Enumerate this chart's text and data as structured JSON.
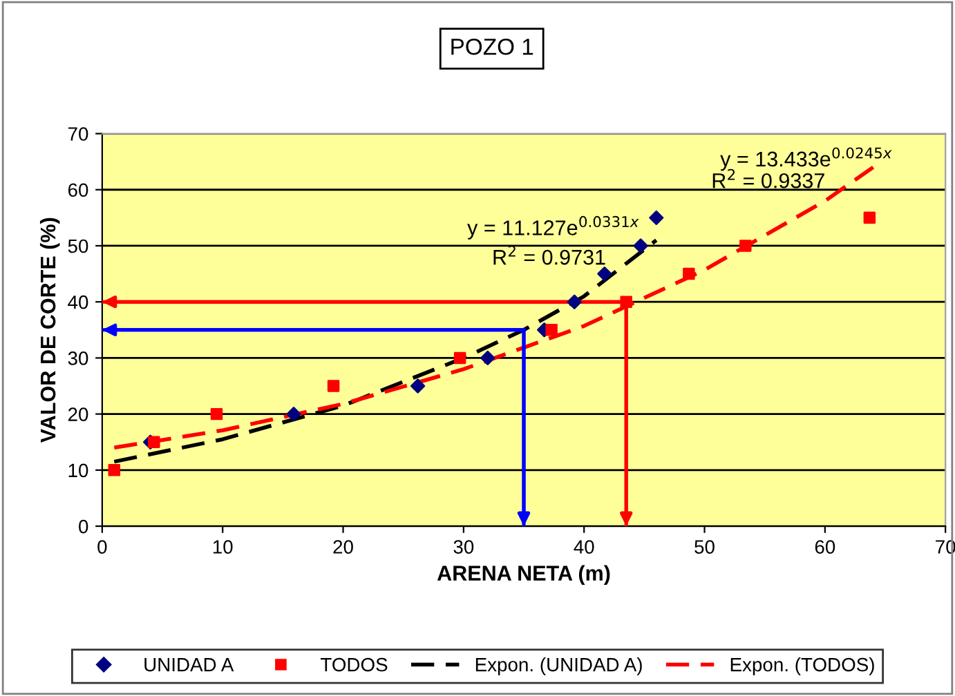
{
  "chart_data": {
    "type": "scatter",
    "title": "POZO 1",
    "xlabel": "ARENA NETA (m)",
    "ylabel": "VALOR DE CORTE (%)",
    "xlim": [
      0,
      70
    ],
    "ylim": [
      0,
      70
    ],
    "xticks": [
      0,
      10,
      20,
      30,
      40,
      50,
      60,
      70
    ],
    "yticks": [
      0,
      10,
      20,
      30,
      40,
      50,
      60,
      70
    ],
    "grid": "y",
    "legend": "bottom",
    "series": [
      {
        "name": "UNIDAD A",
        "marker": "diamond",
        "color": "#000080",
        "x": [
          4.0,
          15.9,
          26.2,
          32.0,
          36.7,
          39.2,
          41.7,
          44.7,
          46.0
        ],
        "values": [
          15,
          20,
          25,
          30,
          35,
          40,
          45,
          50,
          55
        ]
      },
      {
        "name": "TODOS",
        "marker": "square",
        "color": "#ff0000",
        "x": [
          1.0,
          4.3,
          9.5,
          19.2,
          29.7,
          37.3,
          43.5,
          48.7,
          53.4,
          63.7
        ],
        "values": [
          10,
          15,
          20,
          25,
          30,
          35,
          40,
          45,
          50,
          55
        ]
      },
      {
        "name": "Expon. (UNIDAD A)",
        "type": "line",
        "line_style": "dashed",
        "color": "#000000",
        "x": [
          1,
          10,
          20,
          30,
          35,
          40,
          46
        ],
        "values": [
          11.5,
          15.5,
          21.5,
          30,
          35,
          41,
          51
        ]
      },
      {
        "name": "Expon. (TODOS)",
        "type": "line",
        "line_style": "dashed",
        "color": "#ff0000",
        "x": [
          1,
          10,
          20,
          30,
          40,
          50,
          60,
          64
        ],
        "values": [
          14,
          17.1,
          21.8,
          28,
          35.7,
          45.7,
          58,
          64
        ]
      },
      {
        "type": "line",
        "line_style": "solid",
        "color": "#0000ff",
        "x": [
          0,
          35,
          35
        ],
        "values": [
          35,
          35,
          0
        ]
      },
      {
        "type": "line",
        "line_style": "solid",
        "color": "#ff0000",
        "x": [
          0,
          43.5,
          43.5
        ],
        "values": [
          40,
          40,
          0
        ]
      }
    ],
    "annotations": [
      "y = 11.127e$^{0.0331x}$",
      "R$^{2}$ = 0.9731",
      "y = 13.433e$^{0.0245x}$",
      "R$^{2}$ = 0.9337"
    ]
  }
}
